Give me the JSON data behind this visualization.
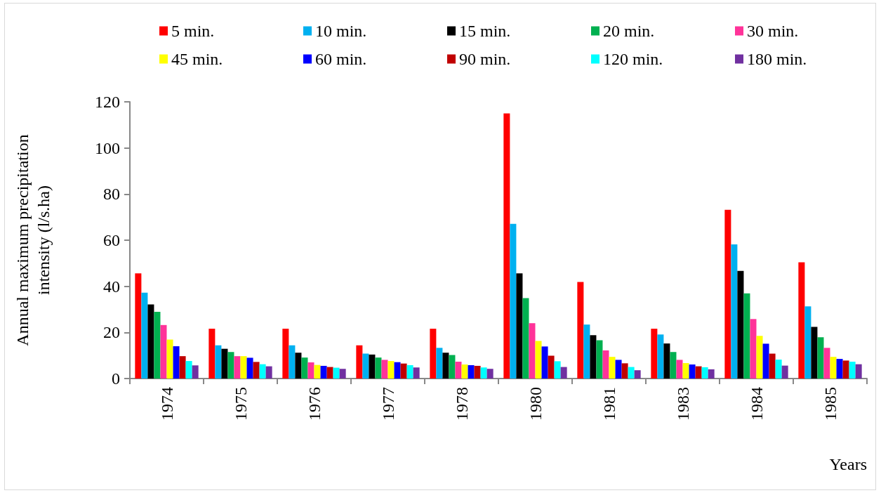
{
  "chart_data": {
    "type": "bar",
    "xlabel": "Years",
    "ylabel": "Annual maximum precipitation\nintensity (l/s.ha)",
    "categories": [
      "1974",
      "1975",
      "1976",
      "1977",
      "1978",
      "1980",
      "1981",
      "1983",
      "1984",
      "1985"
    ],
    "ylim": [
      0,
      120
    ],
    "yticks": [
      0,
      20,
      40,
      60,
      80,
      100,
      120
    ],
    "grid": false,
    "legend": "top",
    "series": [
      {
        "name": "5 min.",
        "color": "#ff0000",
        "values": [
          45.6,
          21.6,
          21.6,
          14.4,
          21.6,
          115.0,
          41.9,
          21.6,
          73.2,
          50.4
        ]
      },
      {
        "name": "10 min.",
        "color": "#00b0f0",
        "values": [
          37.2,
          14.4,
          14.4,
          10.8,
          13.3,
          67.1,
          23.4,
          19.1,
          58.2,
          31.3
        ]
      },
      {
        "name": "15 min.",
        "color": "#000000",
        "values": [
          32.1,
          12.9,
          11.2,
          10.4,
          11.2,
          45.6,
          18.8,
          15.2,
          46.7,
          22.4
        ]
      },
      {
        "name": "20 min.",
        "color": "#00b050",
        "values": [
          28.9,
          11.5,
          9.1,
          9.1,
          10.2,
          34.9,
          16.6,
          11.5,
          36.9,
          17.9
        ]
      },
      {
        "name": "30 min.",
        "color": "#ff3399",
        "values": [
          23.2,
          9.7,
          7.0,
          8.1,
          7.3,
          24.0,
          12.2,
          8.1,
          25.8,
          13.3
        ]
      },
      {
        "name": "45 min.",
        "color": "#ffff00",
        "values": [
          16.9,
          9.7,
          5.9,
          7.6,
          6.1,
          16.3,
          9.4,
          6.7,
          18.5,
          9.4
        ]
      },
      {
        "name": "60 min.",
        "color": "#0000ff",
        "values": [
          14.0,
          9.0,
          5.5,
          7.1,
          5.8,
          13.9,
          8.1,
          6.1,
          15.1,
          8.5
        ]
      },
      {
        "name": "90 min.",
        "color": "#c00000",
        "values": [
          9.7,
          7.2,
          5.0,
          6.5,
          5.5,
          9.9,
          6.6,
          5.3,
          10.8,
          7.8
        ]
      },
      {
        "name": "120 min.",
        "color": "#00ffff",
        "values": [
          7.6,
          6.2,
          4.7,
          5.8,
          4.8,
          7.5,
          5.0,
          4.9,
          8.2,
          7.3
        ]
      },
      {
        "name": "180 min.",
        "color": "#7030a0",
        "values": [
          5.7,
          5.3,
          4.2,
          4.8,
          4.2,
          5.0,
          3.6,
          4.0,
          5.6,
          6.2
        ]
      }
    ]
  }
}
